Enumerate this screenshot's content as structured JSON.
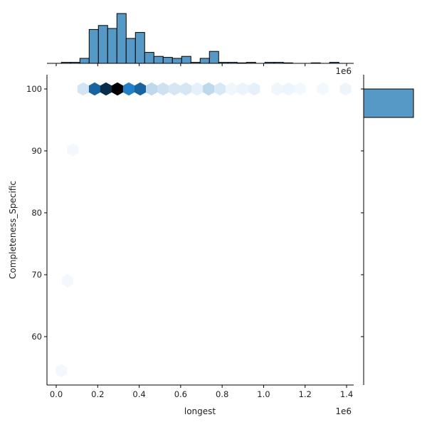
{
  "chart_data": {
    "type": "hexbin-joint",
    "title": "",
    "xlabel": "longest",
    "ylabel": "Completeness_Specific",
    "x_offset_label": "1e6",
    "top_offset_label": "1e6",
    "xlim": [
      -0.03,
      1.43
    ],
    "ylim": [
      52.3,
      102.3
    ],
    "x_ticks": [
      0.0,
      0.2,
      0.4,
      0.6,
      0.8,
      1.0,
      1.2,
      1.4
    ],
    "x_tick_labels": [
      "0.0",
      "0.2",
      "0.4",
      "0.6",
      "0.8",
      "1.0",
      "1.2",
      "1.4"
    ],
    "y_ticks": [
      60,
      70,
      80,
      90,
      100
    ],
    "y_tick_labels": [
      "60",
      "70",
      "80",
      "90",
      "100"
    ],
    "colormap": "Blues",
    "hexbins": [
      {
        "x": 0.13,
        "y": 100,
        "intensity": 0.22
      },
      {
        "x": 0.185,
        "y": 100,
        "intensity": 0.72
      },
      {
        "x": 0.24,
        "y": 100,
        "intensity": 0.88
      },
      {
        "x": 0.295,
        "y": 100,
        "intensity": 1.0
      },
      {
        "x": 0.35,
        "y": 100,
        "intensity": 0.6
      },
      {
        "x": 0.405,
        "y": 100,
        "intensity": 0.72
      },
      {
        "x": 0.46,
        "y": 100,
        "intensity": 0.33
      },
      {
        "x": 0.515,
        "y": 100,
        "intensity": 0.25
      },
      {
        "x": 0.57,
        "y": 100,
        "intensity": 0.2
      },
      {
        "x": 0.625,
        "y": 100,
        "intensity": 0.2
      },
      {
        "x": 0.68,
        "y": 100,
        "intensity": 0.1
      },
      {
        "x": 0.735,
        "y": 100,
        "intensity": 0.33
      },
      {
        "x": 0.79,
        "y": 100,
        "intensity": 0.18
      },
      {
        "x": 0.845,
        "y": 100,
        "intensity": 0.05
      },
      {
        "x": 0.9,
        "y": 100,
        "intensity": 0.07
      },
      {
        "x": 0.955,
        "y": 100,
        "intensity": 0.1
      },
      {
        "x": 1.065,
        "y": 100,
        "intensity": 0.05
      },
      {
        "x": 1.12,
        "y": 100,
        "intensity": 0.06
      },
      {
        "x": 1.175,
        "y": 100,
        "intensity": 0.03
      },
      {
        "x": 1.285,
        "y": 100,
        "intensity": 0.03
      },
      {
        "x": 1.395,
        "y": 100,
        "intensity": 0.06
      },
      {
        "x": 0.08,
        "y": 90.2,
        "intensity": 0.03
      },
      {
        "x": 0.055,
        "y": 69.0,
        "intensity": 0.03
      },
      {
        "x": 0.025,
        "y": 54.5,
        "intensity": 0.03
      }
    ],
    "marginal_x_histogram": {
      "bin_width": 0.0446,
      "bin_start": 0.025,
      "counts": [
        1,
        1,
        5,
        34,
        38,
        35,
        50,
        25,
        31,
        11,
        7,
        6,
        5,
        7,
        1,
        5,
        12,
        1,
        1,
        0.5,
        1,
        0,
        1,
        1,
        0.5,
        0,
        0,
        0.5,
        0,
        1
      ],
      "color": "#5799c6"
    },
    "marginal_y_histogram": {
      "bins": [
        {
          "y_from": 95.4,
          "y_to": 100,
          "count": 1
        }
      ],
      "color": "#5799c6"
    }
  }
}
